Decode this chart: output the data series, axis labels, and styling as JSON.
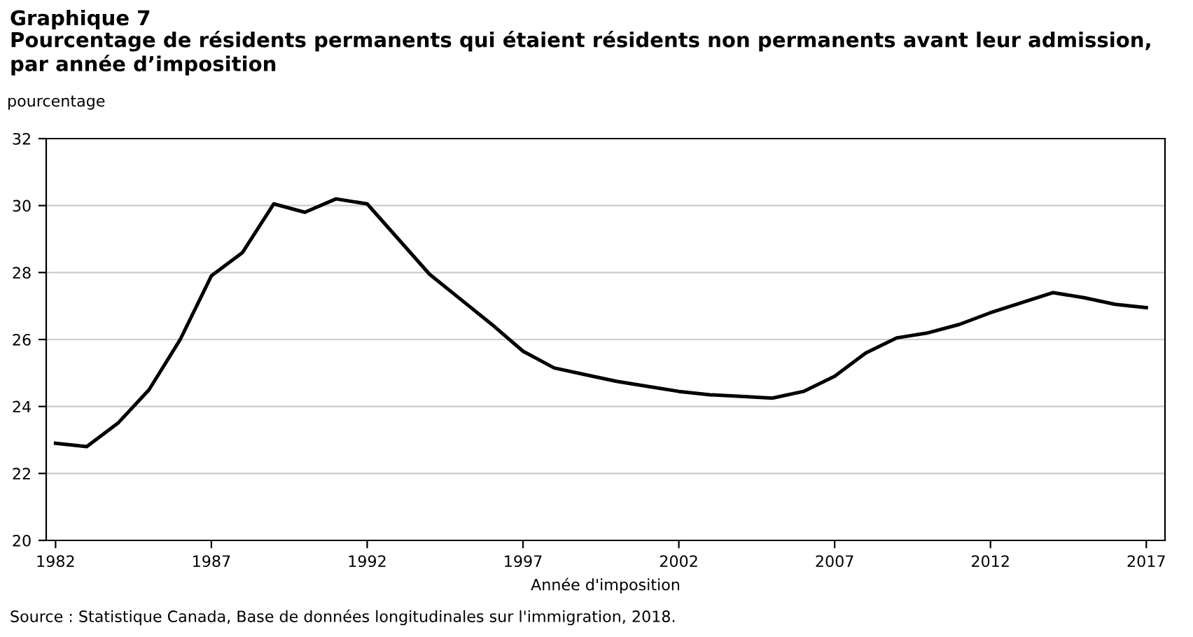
{
  "chart_data": {
    "type": "line",
    "title": "Graphique 7",
    "subtitle": "Pourcentage de résidents permanents qui étaient résidents non permanents avant leur admission, par année d’imposition",
    "ylabel": "pourcentage",
    "xlabel": "Année d'imposition",
    "annotations": [
      "Source : Statistique Canada, Base de données longitudinales sur l'immigration, 2018."
    ],
    "x": [
      1982,
      1983,
      1984,
      1985,
      1986,
      1987,
      1988,
      1989,
      1990,
      1991,
      1992,
      1993,
      1994,
      1995,
      1996,
      1997,
      1998,
      1999,
      2000,
      2001,
      2002,
      2003,
      2004,
      2005,
      2006,
      2007,
      2008,
      2009,
      2010,
      2011,
      2012,
      2013,
      2014,
      2015,
      2016,
      2017
    ],
    "series": [
      {
        "color": "#000000",
        "values": [
          22.9,
          22.8,
          23.5,
          24.5,
          26.0,
          27.9,
          28.6,
          30.05,
          29.8,
          30.2,
          30.05,
          29.0,
          27.95,
          27.2,
          26.45,
          25.65,
          25.15,
          24.95,
          24.75,
          24.6,
          24.45,
          24.35,
          24.3,
          24.25,
          24.45,
          24.9,
          25.6,
          26.05,
          26.2,
          26.45,
          26.8,
          27.1,
          27.4,
          27.25,
          27.05,
          26.95
        ]
      }
    ],
    "xlim": [
      1981.7,
      2017.6
    ],
    "xticks": [
      1982,
      1987,
      1992,
      1997,
      2002,
      2007,
      2012,
      2017
    ],
    "ylim": [
      20,
      32
    ],
    "yticks": [
      20,
      22,
      24,
      26,
      28,
      30,
      32
    ],
    "grid": "y",
    "legend": false,
    "marker": "none",
    "line_style": "solid"
  }
}
